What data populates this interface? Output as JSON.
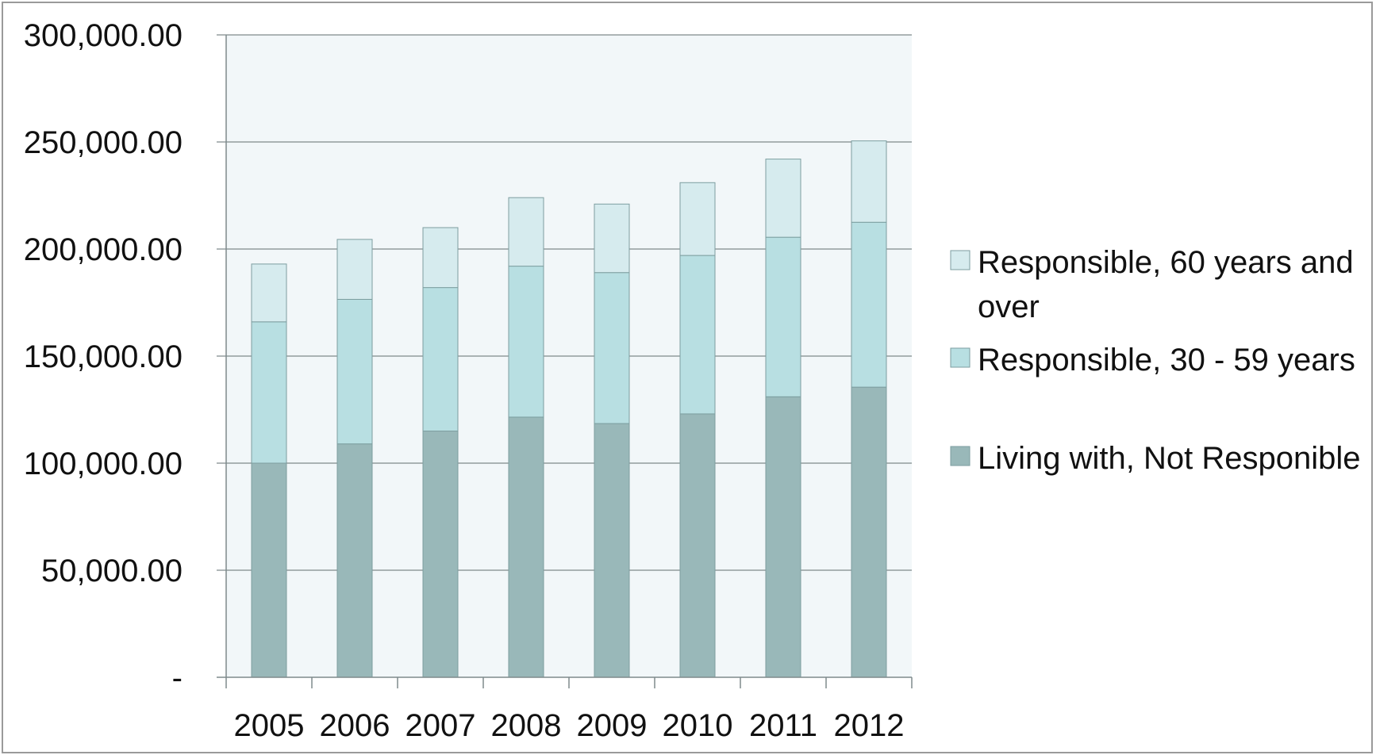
{
  "chart_data": {
    "type": "bar",
    "stacked": true,
    "categories": [
      "2005",
      "2006",
      "2007",
      "2008",
      "2009",
      "2010",
      "2011",
      "2012"
    ],
    "series": [
      {
        "name": "Living with, Not Responible",
        "color": "#99b8b9",
        "values": [
          100000,
          109000,
          115000,
          121500,
          118500,
          123000,
          131000,
          135500
        ]
      },
      {
        "name": "Responsible, 30 - 59 years",
        "color": "#b8dfe2",
        "values": [
          66000,
          67500,
          67000,
          70500,
          70500,
          74000,
          74500,
          77000
        ]
      },
      {
        "name": "Responsible, 60 years and over",
        "color": "#d6ebee",
        "values": [
          27000,
          28000,
          28000,
          32000,
          32000,
          34000,
          36500,
          38000
        ]
      }
    ],
    "y_ticks": [
      "-",
      "50,000.00",
      "100,000.00",
      "150,000.00",
      "200,000.00",
      "250,000.00",
      "300,000.00"
    ],
    "ylim": [
      0,
      300000
    ],
    "grid": true,
    "legend_position": "right",
    "plot_background": "#f2f7f9"
  }
}
